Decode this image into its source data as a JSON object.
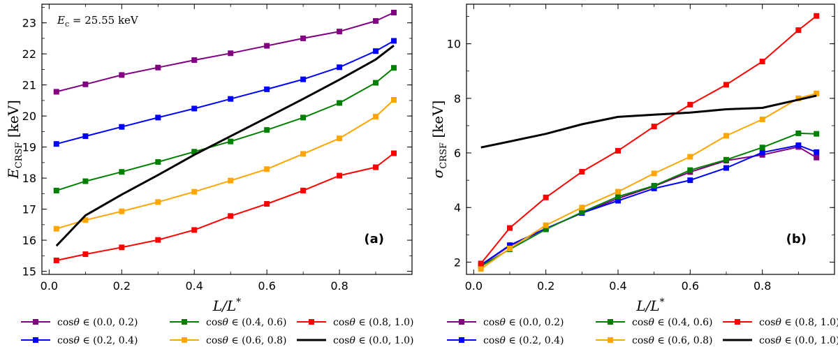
{
  "chart_data": [
    {
      "type": "line",
      "panel_label": "(a)",
      "annotation": "E_c = 25.55 keV",
      "xlabel": "L/L*",
      "ylabel": "E_CRSF [keV]",
      "xlim": [
        -0.02,
        1.0
      ],
      "ylim": [
        14.9,
        23.6
      ],
      "xticks": [
        "0.0",
        "0.2",
        "0.4",
        "0.6",
        "0.8"
      ],
      "yticks": [
        "15",
        "16",
        "17",
        "18",
        "19",
        "20",
        "21",
        "22",
        "23"
      ],
      "x": [
        0.02,
        0.1,
        0.2,
        0.3,
        0.4,
        0.5,
        0.6,
        0.7,
        0.8,
        0.9,
        0.95
      ],
      "series": [
        {
          "name": "cosθ ∈ (0.0, 0.2)",
          "color": "#800080",
          "marker": "square",
          "values": [
            20.78,
            21.02,
            21.32,
            21.56,
            21.8,
            22.02,
            22.26,
            22.5,
            22.72,
            23.06,
            23.33
          ]
        },
        {
          "name": "cosθ ∈ (0.2, 0.4)",
          "color": "#0000ff",
          "marker": "square",
          "values": [
            19.1,
            19.35,
            19.65,
            19.95,
            20.24,
            20.55,
            20.86,
            21.18,
            21.57,
            22.09,
            22.42
          ]
        },
        {
          "name": "cosθ ∈ (0.4, 0.6)",
          "color": "#008000",
          "marker": "square",
          "values": [
            17.6,
            17.9,
            18.2,
            18.52,
            18.85,
            19.18,
            19.55,
            19.95,
            20.42,
            21.07,
            21.55
          ]
        },
        {
          "name": "cosθ ∈ (0.6, 0.8)",
          "color": "#ffa500",
          "marker": "square",
          "values": [
            16.37,
            16.65,
            16.93,
            17.23,
            17.56,
            17.92,
            18.29,
            18.78,
            19.28,
            19.98,
            20.52
          ]
        },
        {
          "name": "cosθ ∈ (0.8, 1.0)",
          "color": "#ff0000",
          "marker": "square",
          "values": [
            15.35,
            15.55,
            15.77,
            16.01,
            16.33,
            16.78,
            17.17,
            17.6,
            18.08,
            18.35,
            18.8
          ]
        },
        {
          "name": "cosθ ∈ (0.0, 1.0)",
          "color": "#000000",
          "marker": "none",
          "values": [
            15.82,
            16.8,
            17.47,
            18.1,
            18.75,
            19.35,
            19.95,
            20.55,
            21.17,
            21.82,
            22.27
          ]
        }
      ]
    },
    {
      "type": "line",
      "panel_label": "(b)",
      "xlabel": "L/L*",
      "ylabel": "σ_CRSF [keV]",
      "xlim": [
        -0.02,
        1.0
      ],
      "ylim": [
        1.55,
        11.45
      ],
      "xticks": [
        "0.0",
        "0.2",
        "0.4",
        "0.6",
        "0.8"
      ],
      "yticks": [
        "2",
        "4",
        "6",
        "8",
        "10"
      ],
      "x": [
        0.02,
        0.1,
        0.2,
        0.3,
        0.4,
        0.5,
        0.6,
        0.7,
        0.8,
        0.9,
        0.95
      ],
      "series": [
        {
          "name": "cosθ ∈ (0.0, 0.2)",
          "color": "#800080",
          "marker": "square",
          "values": [
            1.88,
            2.6,
            3.22,
            3.8,
            4.33,
            4.78,
            5.3,
            5.72,
            5.93,
            6.22,
            5.83
          ]
        },
        {
          "name": "cosθ ∈ (0.2, 0.4)",
          "color": "#0000ff",
          "marker": "square",
          "values": [
            1.9,
            2.62,
            3.23,
            3.8,
            4.25,
            4.7,
            5.0,
            5.45,
            6.02,
            6.28,
            6.03
          ]
        },
        {
          "name": "cosθ ∈ (0.4, 0.6)",
          "color": "#008000",
          "marker": "square",
          "values": [
            1.85,
            2.47,
            3.2,
            3.83,
            4.4,
            4.8,
            5.37,
            5.75,
            6.2,
            6.72,
            6.7
          ]
        },
        {
          "name": "cosθ ∈ (0.6, 0.8)",
          "color": "#ffa500",
          "marker": "square",
          "values": [
            1.75,
            2.5,
            3.35,
            4.0,
            4.58,
            5.25,
            5.86,
            6.63,
            7.23,
            8.0,
            8.18
          ]
        },
        {
          "name": "cosθ ∈ (0.8, 1.0)",
          "color": "#ff0000",
          "marker": "square",
          "values": [
            1.95,
            3.25,
            4.37,
            5.31,
            6.08,
            6.97,
            7.77,
            8.5,
            9.35,
            10.5,
            11.02
          ]
        },
        {
          "name": "cosθ ∈ (0.0, 1.0)",
          "color": "#000000",
          "marker": "none",
          "values": [
            6.2,
            6.42,
            6.7,
            7.05,
            7.32,
            7.4,
            7.48,
            7.6,
            7.65,
            7.95,
            8.1
          ]
        }
      ]
    }
  ]
}
